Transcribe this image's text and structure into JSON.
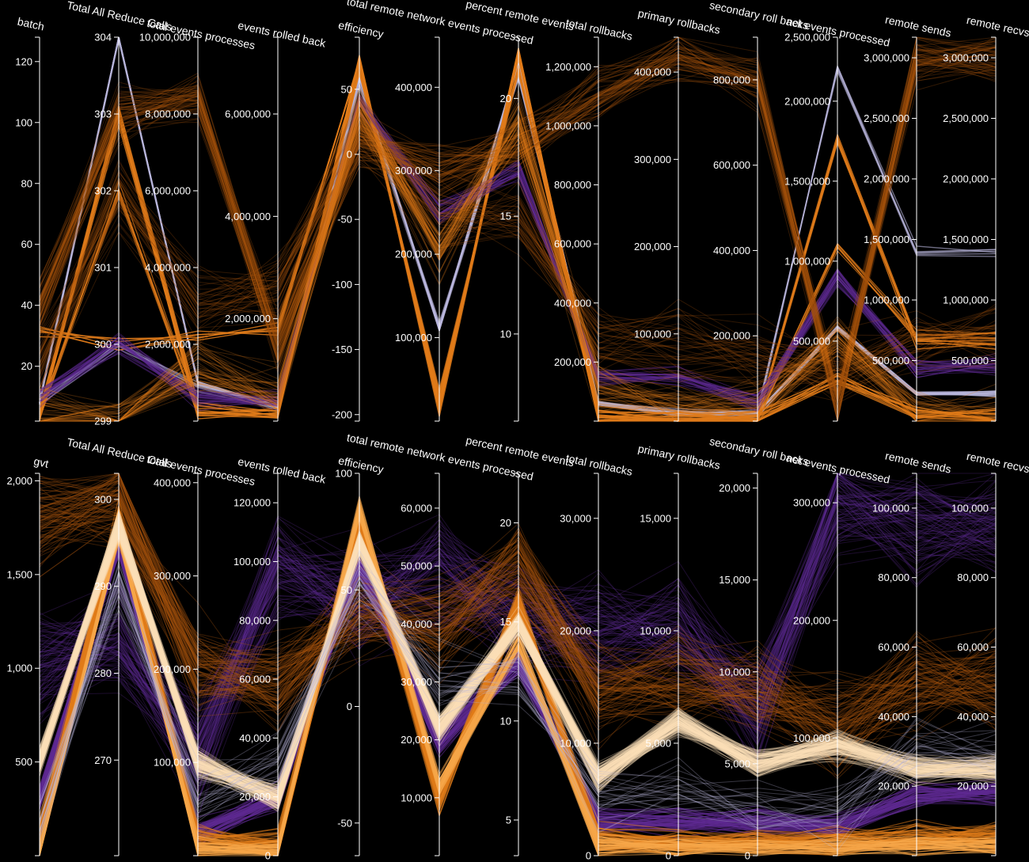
{
  "colors": {
    "background": "#000000",
    "axis": "#ffffff",
    "purple": "#5e2a92",
    "lavender": "#b9b6dc",
    "orange": "#e07b1a",
    "dark_orange": "#a6520d",
    "light_orange": "#f6a64a",
    "peach": "#fde0b8"
  },
  "chart_data": [
    {
      "type": "parallel-coordinates",
      "axes": [
        {
          "name": "batch",
          "ylim": [
            2,
            128
          ],
          "ticks": [
            20,
            40,
            60,
            80,
            100,
            120
          ],
          "tick_labels": [
            "20",
            "40",
            "60",
            "80",
            "100",
            "120"
          ]
        },
        {
          "name": "Total All Reduce Calls",
          "ylim": [
            299,
            304
          ],
          "ticks": [
            299,
            300,
            301,
            302,
            303,
            304
          ],
          "tick_labels": [
            "299",
            "300",
            "301",
            "302",
            "303",
            "304"
          ]
        },
        {
          "name": "total events processes",
          "ylim": [
            0,
            10000000
          ],
          "ticks": [
            2000000,
            4000000,
            6000000,
            8000000,
            10000000
          ],
          "tick_labels": [
            "2,000,000",
            "4,000,000",
            "6,000,000",
            "8,000,000",
            "10,000,000"
          ]
        },
        {
          "name": "events rolled back",
          "ylim": [
            0,
            7500000
          ],
          "ticks": [
            2000000,
            4000000,
            6000000
          ],
          "tick_labels": [
            "2,000,000",
            "4,000,000",
            "6,000,000"
          ]
        },
        {
          "name": "efficiency",
          "ylim": [
            -205,
            90
          ],
          "ticks": [
            -200,
            -150,
            -100,
            -50,
            0,
            50
          ],
          "tick_labels": [
            "-200",
            "-150",
            "-100",
            "-50",
            "0",
            "50"
          ]
        },
        {
          "name": "total remote network events processed",
          "ylim": [
            0,
            460000
          ],
          "ticks": [
            100000,
            200000,
            300000,
            400000
          ],
          "tick_labels": [
            "100,000",
            "200,000",
            "300,000",
            "400,000"
          ]
        },
        {
          "name": "percent remote events",
          "ylim": [
            6.3,
            22.6
          ],
          "ticks": [
            10,
            15,
            20
          ],
          "tick_labels": [
            "10",
            "15",
            "20"
          ]
        },
        {
          "name": "total rollbacks",
          "ylim": [
            0,
            1300000
          ],
          "ticks": [
            200000,
            400000,
            600000,
            800000,
            1000000,
            1200000
          ],
          "tick_labels": [
            "200,000",
            "400,000",
            "600,000",
            "800,000",
            "1,000,000",
            "1,200,000"
          ]
        },
        {
          "name": "primary rollbacks",
          "ylim": [
            0,
            440000
          ],
          "ticks": [
            100000,
            200000,
            300000,
            400000
          ],
          "tick_labels": [
            "100,000",
            "200,000",
            "300,000",
            "400,000"
          ]
        },
        {
          "name": "secondary roll backs",
          "ylim": [
            0,
            900000
          ],
          "ticks": [
            200000,
            400000,
            600000,
            800000
          ],
          "tick_labels": [
            "200,000",
            "400,000",
            "600,000",
            "800,000"
          ]
        },
        {
          "name": "net events processed",
          "ylim": [
            0,
            2400000
          ],
          "ticks": [
            500000,
            1000000,
            1500000,
            2000000,
            2500000
          ],
          "tick_labels": [
            "500,000",
            "1,000,000",
            "1,500,000",
            "2,000,000",
            "2,500,000"
          ]
        },
        {
          "name": "remote sends",
          "ylim": [
            0,
            3170000
          ],
          "ticks": [
            500000,
            1000000,
            1500000,
            2000000,
            2500000,
            3000000
          ],
          "tick_labels": [
            "500,000",
            "1,000,000",
            "1,500,000",
            "2,000,000",
            "2,500,000",
            "3,000,000"
          ]
        },
        {
          "name": "remote recvs",
          "ylim": [
            0,
            3170000
          ],
          "ticks": [
            500000,
            1000000,
            1500000,
            2000000,
            2500000,
            3000000
          ],
          "tick_labels": [
            "500,000",
            "1,000,000",
            "1,500,000",
            "2,000,000",
            "2,500,000",
            "3,000,000"
          ]
        }
      ],
      "series": [
        {
          "color": "lavender",
          "count": 8,
          "spread": 0.012,
          "alpha": 0.85,
          "width": 1.6,
          "values": [
            8,
            304,
            1000000,
            250000,
            60,
            110000,
            21.5,
            60000,
            9000,
            18000,
            580000,
            230000,
            230000
          ]
        },
        {
          "color": "lavender",
          "count": 6,
          "spread": 0.02,
          "alpha": 0.6,
          "width": 1.4,
          "values": [
            8,
            300,
            900000,
            220000,
            55,
            115000,
            21.0,
            65000,
            10000,
            20000,
            2200000,
            1400000,
            1400000
          ]
        },
        {
          "color": "orange",
          "count": 10,
          "spread": 0.03,
          "alpha": 0.85,
          "width": 1.4,
          "values": [
            3,
            303,
            300000,
            120000,
            75,
            15000,
            22.0,
            8000,
            2000,
            3000,
            250000,
            60000,
            60000
          ]
        },
        {
          "color": "orange",
          "count": 6,
          "spread": 0.03,
          "alpha": 0.85,
          "width": 1.4,
          "values": [
            32,
            300,
            2200000,
            1800000,
            70,
            20000,
            21.8,
            10000,
            3000,
            5000,
            1750000,
            650000,
            650000
          ]
        },
        {
          "color": "orange",
          "count": 8,
          "spread": 0.03,
          "alpha": 0.7,
          "width": 1.2,
          "values": [
            4,
            302,
            250000,
            100000,
            65,
            30000,
            21.2,
            20000,
            5000,
            8000,
            1100000,
            700000,
            700000
          ]
        },
        {
          "color": "purple",
          "count": 30,
          "spread": 0.04,
          "alpha": 0.5,
          "width": 1.0,
          "values": [
            10,
            300,
            600000,
            400000,
            40,
            250000,
            17.0,
            150000,
            50000,
            40000,
            900000,
            450000,
            450000
          ]
        },
        {
          "color": "dark_orange",
          "count": 60,
          "spread": 0.1,
          "alpha": 0.3,
          "width": 1.0,
          "values": [
            40,
            303,
            8500000,
            1500000,
            10,
            300000,
            18.0,
            1100000,
            420000,
            800000,
            100000,
            3000000,
            3000000
          ]
        },
        {
          "color": "dark_orange",
          "count": 40,
          "spread": 0.14,
          "alpha": 0.28,
          "width": 1.0,
          "values": [
            20,
            302,
            3000000,
            2500000,
            20,
            250000,
            15.0,
            300000,
            90000,
            150000,
            300000,
            700000,
            700000
          ]
        },
        {
          "color": "orange",
          "count": 50,
          "spread": 0.1,
          "alpha": 0.28,
          "width": 1.0,
          "values": [
            3,
            299,
            1500000,
            500000,
            35,
            200000,
            19.0,
            100000,
            20000,
            30000,
            500000,
            50000,
            50000
          ]
        }
      ]
    },
    {
      "type": "parallel-coordinates",
      "axes": [
        {
          "name": "gvt",
          "ylim": [
            0,
            2040
          ],
          "ticks": [
            500,
            1000,
            1500,
            2000
          ],
          "tick_labels": [
            "500",
            "1,000",
            "1,500",
            "2,000"
          ]
        },
        {
          "name": "Total All Reduce Calls",
          "ylim": [
            259,
            303
          ],
          "ticks": [
            270,
            280,
            290,
            300
          ],
          "tick_labels": [
            "270",
            "280",
            "290",
            "300"
          ]
        },
        {
          "name": "total events processes",
          "ylim": [
            0,
            410000
          ],
          "ticks": [
            100000,
            200000,
            300000,
            400000
          ],
          "tick_labels": [
            "100,000",
            "200,000",
            "300,000",
            "400,000"
          ]
        },
        {
          "name": "events rolled back",
          "ylim": [
            0,
            130000
          ],
          "ticks": [
            0,
            20000,
            40000,
            60000,
            80000,
            100000,
            120000
          ],
          "tick_labels": [
            "0",
            "20,000",
            "40,000",
            "60,000",
            "80,000",
            "100,000",
            "120,000"
          ]
        },
        {
          "name": "efficiency",
          "ylim": [
            -64,
            100
          ],
          "ticks": [
            -50,
            0,
            50,
            100
          ],
          "tick_labels": [
            "-50",
            "0",
            "50",
            "100"
          ]
        },
        {
          "name": "total remote network events processed",
          "ylim": [
            0,
            66000
          ],
          "ticks": [
            10000,
            20000,
            30000,
            40000,
            50000,
            60000
          ],
          "tick_labels": [
            "10,000",
            "20,000",
            "30,000",
            "40,000",
            "50,000",
            "60,000"
          ]
        },
        {
          "name": "percent remote events",
          "ylim": [
            3.2,
            22.5
          ],
          "ticks": [
            5,
            10,
            15,
            20
          ],
          "tick_labels": [
            "5",
            "10",
            "15",
            "20"
          ]
        },
        {
          "name": "total rollbacks",
          "ylim": [
            0,
            34000
          ],
          "ticks": [
            0,
            10000,
            20000,
            30000
          ],
          "tick_labels": [
            "0",
            "10,000",
            "20,000",
            "30,000"
          ]
        },
        {
          "name": "primary rollbacks",
          "ylim": [
            0,
            17000
          ],
          "ticks": [
            0,
            5000,
            10000,
            15000
          ],
          "tick_labels": [
            "0",
            "5,000",
            "10,000",
            "15,000"
          ]
        },
        {
          "name": "secondary roll backs",
          "ylim": [
            0,
            20800
          ],
          "ticks": [
            0,
            5000,
            10000,
            15000,
            20000
          ],
          "tick_labels": [
            "0",
            "5,000",
            "10,000",
            "15,000",
            "20,000"
          ]
        },
        {
          "name": "net events processed",
          "ylim": [
            0,
            325000
          ],
          "ticks": [
            100000,
            200000,
            300000
          ],
          "tick_labels": [
            "100,000",
            "200,000",
            "300,000"
          ]
        },
        {
          "name": "remote sends",
          "ylim": [
            0,
            110000
          ],
          "ticks": [
            20000,
            40000,
            60000,
            80000,
            100000
          ],
          "tick_labels": [
            "20,000",
            "40,000",
            "60,000",
            "80,000",
            "100,000"
          ]
        },
        {
          "name": "remote recvs",
          "ylim": [
            0,
            110000
          ],
          "ticks": [
            20000,
            40000,
            60000,
            80000,
            100000
          ],
          "tick_labels": [
            "20,000",
            "40,000",
            "60,000",
            "80,000",
            "100,000"
          ]
        }
      ],
      "series": [
        {
          "color": "purple",
          "count": 90,
          "spread": 0.22,
          "alpha": 0.3,
          "width": 1.0,
          "values": [
            1000,
            285,
            110000,
            100000,
            45,
            50000,
            15.0,
            20000,
            10000,
            8000,
            300000,
            95000,
            95000
          ]
        },
        {
          "color": "purple",
          "count": 60,
          "spread": 0.05,
          "alpha": 0.55,
          "width": 1.2,
          "values": [
            300,
            295,
            25000,
            20000,
            60,
            20000,
            13.0,
            3000,
            1500,
            1800,
            25000,
            18000,
            18000
          ]
        },
        {
          "color": "dark_orange",
          "count": 90,
          "spread": 0.18,
          "alpha": 0.35,
          "width": 1.0,
          "values": [
            1800,
            300,
            200000,
            60000,
            40,
            40000,
            18.0,
            15000,
            8000,
            9000,
            110000,
            50000,
            50000
          ]
        },
        {
          "color": "orange",
          "count": 60,
          "spread": 0.06,
          "alpha": 0.55,
          "width": 1.2,
          "values": [
            100,
            298,
            15000,
            3000,
            80,
            10000,
            16.0,
            1500,
            600,
            700,
            10000,
            5000,
            5000
          ]
        },
        {
          "color": "light_orange",
          "count": 40,
          "spread": 0.04,
          "alpha": 0.6,
          "width": 1.2,
          "values": [
            20,
            296,
            8000,
            1500,
            85,
            12000,
            14.0,
            1000,
            400,
            500,
            7000,
            3000,
            3000
          ]
        },
        {
          "color": "peach",
          "count": 150,
          "spread": 0.05,
          "alpha": 0.35,
          "width": 1.1,
          "values": [
            500,
            297,
            100000,
            20000,
            70,
            22000,
            15.0,
            7000,
            6000,
            5000,
            95000,
            25000,
            25000
          ]
        },
        {
          "color": "lavender",
          "count": 25,
          "spread": 0.12,
          "alpha": 0.3,
          "width": 1.0,
          "values": [
            200,
            290,
            60000,
            30000,
            55,
            30000,
            12.0,
            5000,
            3000,
            2500,
            40000,
            30000,
            30000
          ]
        }
      ]
    }
  ]
}
